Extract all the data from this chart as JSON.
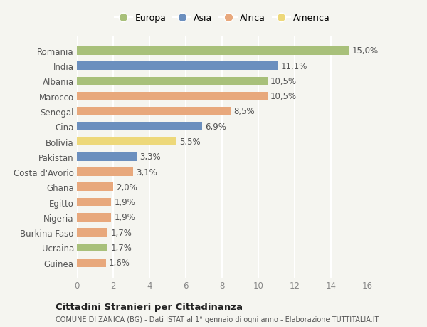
{
  "categories": [
    "Romania",
    "India",
    "Albania",
    "Marocco",
    "Senegal",
    "Cina",
    "Bolivia",
    "Pakistan",
    "Costa d'Avorio",
    "Ghana",
    "Egitto",
    "Nigeria",
    "Burkina Faso",
    "Ucraina",
    "Guinea"
  ],
  "values": [
    15.0,
    11.1,
    10.5,
    10.5,
    8.5,
    6.9,
    5.5,
    3.3,
    3.1,
    2.0,
    1.9,
    1.9,
    1.7,
    1.7,
    1.6
  ],
  "labels": [
    "15,0%",
    "11,1%",
    "10,5%",
    "10,5%",
    "8,5%",
    "6,9%",
    "5,5%",
    "3,3%",
    "3,1%",
    "2,0%",
    "1,9%",
    "1,9%",
    "1,7%",
    "1,7%",
    "1,6%"
  ],
  "continents": [
    "Europa",
    "Asia",
    "Europa",
    "Africa",
    "Africa",
    "Asia",
    "America",
    "Asia",
    "Africa",
    "Africa",
    "Africa",
    "Africa",
    "Africa",
    "Europa",
    "Africa"
  ],
  "colors": {
    "Europa": "#a8c07a",
    "Asia": "#6b8fbe",
    "Africa": "#e8a87c",
    "America": "#edd87a"
  },
  "legend_order": [
    "Europa",
    "Asia",
    "Africa",
    "America"
  ],
  "title": "Cittadini Stranieri per Cittadinanza",
  "subtitle": "COMUNE DI ZANICA (BG) - Dati ISTAT al 1° gennaio di ogni anno - Elaborazione TUTTITALIA.IT",
  "xlim": [
    0,
    16
  ],
  "xticks": [
    0,
    2,
    4,
    6,
    8,
    10,
    12,
    14,
    16
  ],
  "background_color": "#f5f5f0",
  "grid_color": "#ffffff",
  "bar_height": 0.55,
  "label_fontsize": 8.5,
  "ytick_fontsize": 8.5,
  "xtick_fontsize": 8.5
}
